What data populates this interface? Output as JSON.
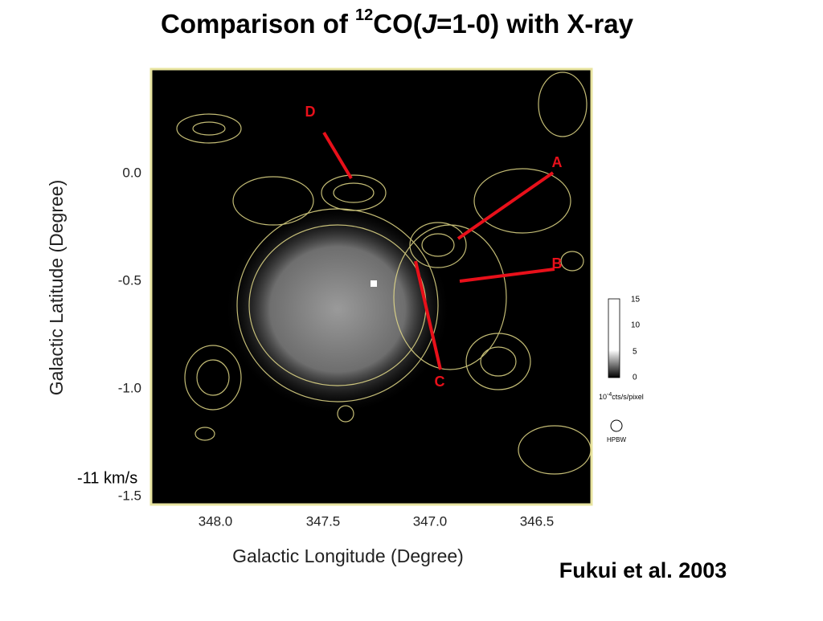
{
  "slide": {
    "title": {
      "before": "Comparison of ",
      "sup": "12",
      "mid": "CO(",
      "italic": "J",
      "after": "=1-0) with X-ray"
    },
    "figure": {
      "velocity": "-11 km/s",
      "x_axis_title": "Galactic Longitude (Degree)",
      "y_axis_title": "Galactic Latitude (Degree)",
      "x_ticks": [
        "348.0",
        "347.5",
        "347.0",
        "346.5"
      ],
      "y_ticks": [
        "0.0",
        "-0.5",
        "-1.0",
        "-1.5"
      ],
      "markers": [
        "D",
        "A",
        "B",
        "C"
      ],
      "colorbar": {
        "ticks": [
          "15",
          "10",
          "5",
          "0"
        ],
        "unit_base": "10",
        "unit_exp": "-4",
        "unit_rest": "cts/s/pixel"
      },
      "beam_label": "HPBW"
    },
    "citation": "Fukui et al. 2003"
  }
}
